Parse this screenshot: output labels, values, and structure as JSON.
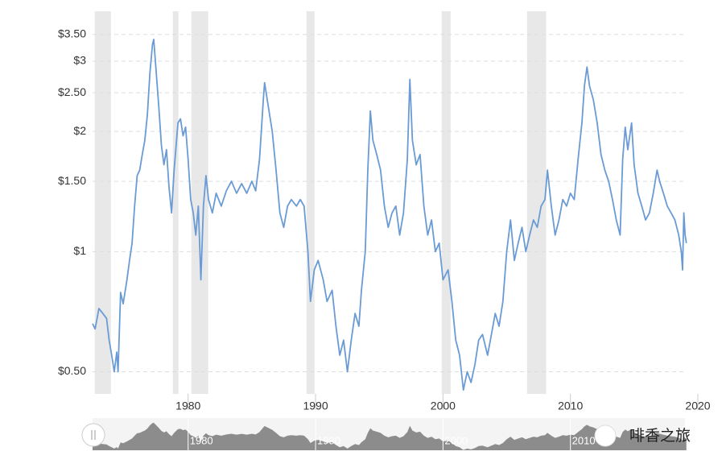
{
  "chart_data": {
    "type": "line",
    "log_scale": true,
    "grid": true,
    "color": "#6a9bd5",
    "shade_color": "#e8e8e8",
    "x": [
      1972.5,
      1972.7,
      1973.0,
      1973.3,
      1973.6,
      1973.8,
      1974.0,
      1974.2,
      1974.4,
      1974.5,
      1974.7,
      1974.9,
      1975.2,
      1975.4,
      1975.6,
      1975.8,
      1976.0,
      1976.2,
      1976.4,
      1976.6,
      1976.8,
      1977.0,
      1977.2,
      1977.3,
      1977.5,
      1977.7,
      1977.9,
      1978.1,
      1978.3,
      1978.5,
      1978.7,
      1978.9,
      1979.2,
      1979.4,
      1979.6,
      1979.8,
      1980.0,
      1980.2,
      1980.4,
      1980.6,
      1980.8,
      1981.0,
      1981.2,
      1981.4,
      1981.6,
      1981.9,
      1982.2,
      1982.6,
      1983.0,
      1983.4,
      1983.8,
      1984.2,
      1984.6,
      1985.0,
      1985.3,
      1985.6,
      1985.9,
      1986.0,
      1986.3,
      1986.6,
      1986.9,
      1987.2,
      1987.5,
      1987.8,
      1988.1,
      1988.5,
      1988.8,
      1989.1,
      1989.4,
      1989.6,
      1989.9,
      1990.2,
      1990.6,
      1990.9,
      1991.3,
      1991.6,
      1991.9,
      1992.2,
      1992.5,
      1992.8,
      1993.1,
      1993.4,
      1993.6,
      1993.9,
      1994.1,
      1994.3,
      1994.5,
      1994.8,
      1995.1,
      1995.4,
      1995.7,
      1996.0,
      1996.3,
      1996.6,
      1996.9,
      1997.2,
      1997.4,
      1997.6,
      1997.9,
      1998.2,
      1998.5,
      1998.8,
      1999.1,
      1999.4,
      1999.7,
      2000.0,
      2000.4,
      2000.7,
      2001.0,
      2001.3,
      2001.6,
      2001.9,
      2002.2,
      2002.5,
      2002.8,
      2003.1,
      2003.5,
      2003.8,
      2004.1,
      2004.4,
      2004.7,
      2005.0,
      2005.3,
      2005.6,
      2005.9,
      2006.2,
      2006.5,
      2006.8,
      2007.1,
      2007.4,
      2007.7,
      2008.0,
      2008.2,
      2008.5,
      2008.8,
      2009.1,
      2009.4,
      2009.7,
      2010.0,
      2010.3,
      2010.6,
      2010.9,
      2011.1,
      2011.3,
      2011.5,
      2011.8,
      2012.1,
      2012.4,
      2012.7,
      2013.0,
      2013.3,
      2013.6,
      2013.9,
      2014.1,
      2014.3,
      2014.5,
      2014.8,
      2015.0,
      2015.3,
      2015.6,
      2015.9,
      2016.2,
      2016.5,
      2016.8,
      2017.0,
      2017.3,
      2017.6,
      2017.9,
      2018.2,
      2018.5,
      2018.7,
      2018.8,
      2018.9,
      2019.0,
      2019.1
    ],
    "values": [
      0.66,
      0.64,
      0.72,
      0.7,
      0.68,
      0.6,
      0.55,
      0.5,
      0.56,
      0.5,
      0.79,
      0.74,
      0.85,
      0.95,
      1.05,
      1.3,
      1.55,
      1.6,
      1.75,
      1.9,
      2.2,
      2.8,
      3.3,
      3.4,
      2.8,
      2.3,
      1.85,
      1.65,
      1.8,
      1.45,
      1.25,
      1.6,
      2.1,
      2.15,
      1.95,
      2.05,
      1.7,
      1.35,
      1.25,
      1.1,
      1.3,
      0.85,
      1.3,
      1.55,
      1.35,
      1.25,
      1.4,
      1.3,
      1.42,
      1.5,
      1.4,
      1.48,
      1.4,
      1.5,
      1.42,
      1.7,
      2.4,
      2.65,
      2.3,
      2.0,
      1.6,
      1.25,
      1.15,
      1.3,
      1.35,
      1.3,
      1.35,
      1.3,
      1.0,
      0.75,
      0.9,
      0.95,
      0.85,
      0.75,
      0.8,
      0.65,
      0.55,
      0.6,
      0.5,
      0.6,
      0.7,
      0.65,
      0.8,
      1.0,
      1.6,
      2.25,
      1.9,
      1.75,
      1.6,
      1.3,
      1.15,
      1.25,
      1.3,
      1.1,
      1.25,
      1.7,
      2.7,
      1.9,
      1.65,
      1.75,
      1.3,
      1.1,
      1.2,
      1.0,
      1.05,
      0.85,
      0.9,
      0.75,
      0.6,
      0.55,
      0.45,
      0.5,
      0.47,
      0.52,
      0.6,
      0.62,
      0.55,
      0.62,
      0.7,
      0.65,
      0.75,
      1.0,
      1.2,
      0.95,
      1.05,
      1.15,
      1.0,
      1.1,
      1.2,
      1.15,
      1.3,
      1.35,
      1.6,
      1.3,
      1.1,
      1.2,
      1.35,
      1.3,
      1.4,
      1.35,
      1.7,
      2.1,
      2.6,
      2.9,
      2.6,
      2.4,
      2.1,
      1.75,
      1.6,
      1.5,
      1.35,
      1.2,
      1.1,
      1.7,
      2.05,
      1.8,
      2.1,
      1.65,
      1.4,
      1.3,
      1.2,
      1.25,
      1.4,
      1.6,
      1.5,
      1.4,
      1.3,
      1.25,
      1.2,
      1.1,
      1.0,
      0.9,
      1.25,
      1.1,
      1.05
    ],
    "shaded_ranges": [
      [
        1972.67,
        1973.94
      ],
      [
        1978.8,
        1979.24
      ],
      [
        1980.25,
        1981.58
      ],
      [
        1989.29,
        1989.92
      ],
      [
        1999.9,
        2000.6
      ],
      [
        2006.6,
        2008.1
      ]
    ],
    "xlim": [
      1972.5,
      2020
    ],
    "ylim": [
      0.44,
      4.0
    ],
    "xticks": [
      1980,
      1990,
      2000,
      2010,
      2020
    ],
    "yticks": [
      {
        "value": 0.5,
        "label": "$0.50"
      },
      {
        "value": 1,
        "label": "$1"
      },
      {
        "value": 1.5,
        "label": "$1.50"
      },
      {
        "value": 2,
        "label": "$2"
      },
      {
        "value": 2.5,
        "label": "$2.50"
      },
      {
        "value": 3,
        "label": "$3"
      },
      {
        "value": 3.5,
        "label": "$3.50"
      }
    ],
    "watermark": "啡香之旅"
  }
}
